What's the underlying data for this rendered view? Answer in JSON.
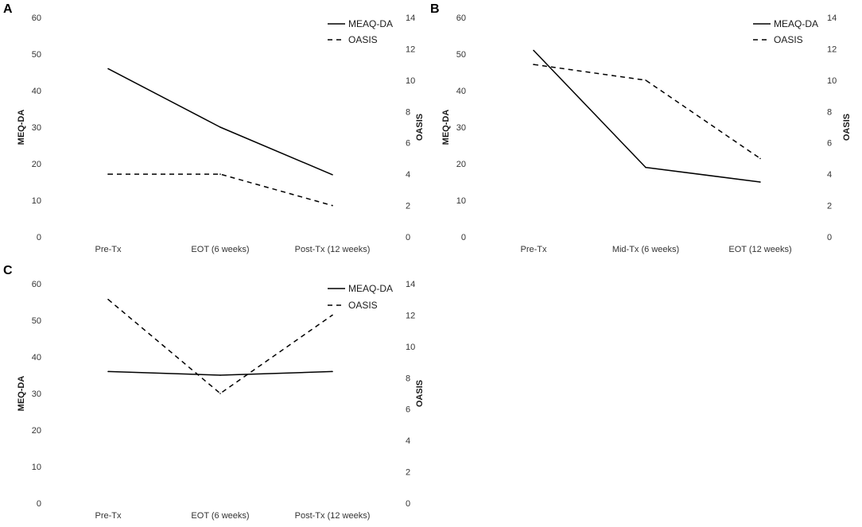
{
  "chart_data": [
    {
      "type": "line",
      "panel_label": "A",
      "categories": [
        "Pre-Tx",
        "EOT (6 weeks)",
        "Post-Tx (12 weeks)"
      ],
      "ylabel": "MEQ-DA",
      "y2label": "OASIS",
      "ylim": [
        0,
        60
      ],
      "y2lim": [
        0,
        14
      ],
      "yticks": [
        "0",
        "10",
        "20",
        "30",
        "40",
        "50",
        "60"
      ],
      "y2ticks": [
        "0",
        "2",
        "4",
        "6",
        "8",
        "10",
        "12",
        "14"
      ],
      "legend": "top-right",
      "series": [
        {
          "name": "MEAQ-DA",
          "axis": "left",
          "style": "solid",
          "values": [
            46,
            30,
            17
          ]
        },
        {
          "name": "OASIS",
          "axis": "right",
          "style": "dashed",
          "values": [
            4,
            4,
            2
          ]
        }
      ]
    },
    {
      "type": "line",
      "panel_label": "B",
      "categories": [
        "Pre-Tx",
        "Mid-Tx (6 weeks)",
        "EOT (12 weeks)"
      ],
      "ylabel": "MEQ-DA",
      "y2label": "OASIS",
      "ylim": [
        0,
        60
      ],
      "y2lim": [
        0,
        14
      ],
      "yticks": [
        "0",
        "10",
        "20",
        "30",
        "40",
        "50",
        "60"
      ],
      "y2ticks": [
        "0",
        "2",
        "4",
        "6",
        "8",
        "10",
        "12",
        "14"
      ],
      "legend": "top-right",
      "series": [
        {
          "name": "MEAQ-DA",
          "axis": "left",
          "style": "solid",
          "values": [
            51,
            19,
            15
          ]
        },
        {
          "name": "OASIS",
          "axis": "right",
          "style": "dashed",
          "values": [
            11,
            10,
            5
          ]
        }
      ]
    },
    {
      "type": "line",
      "panel_label": "C",
      "categories": [
        "Pre-Tx",
        "EOT (6 weeks)",
        "Post-Tx (12 weeks)"
      ],
      "ylabel": "MEQ-DA",
      "y2label": "OASIS",
      "ylim": [
        0,
        60
      ],
      "y2lim": [
        0,
        14
      ],
      "yticks": [
        "0",
        "10",
        "20",
        "30",
        "40",
        "50",
        "60"
      ],
      "y2ticks": [
        "0",
        "2",
        "4",
        "6",
        "8",
        "10",
        "12",
        "14"
      ],
      "legend": "top-right",
      "series": [
        {
          "name": "MEAQ-DA",
          "axis": "left",
          "style": "solid",
          "values": [
            36,
            35,
            36
          ]
        },
        {
          "name": "OASIS",
          "axis": "right",
          "style": "dashed",
          "values": [
            13,
            7,
            12
          ]
        }
      ]
    }
  ]
}
